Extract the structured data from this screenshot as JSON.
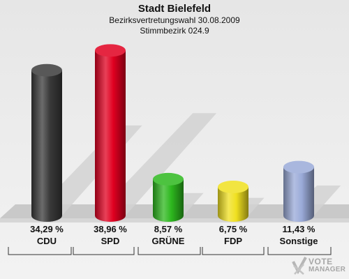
{
  "header": {
    "title": "Stadt Bielefeld",
    "subtitle": "Bezirksvertretungswahl 30.08.2009",
    "subtitle2": "Stimmbezirk 024.9"
  },
  "chart_data": {
    "type": "bar",
    "title": "Stadt Bielefeld",
    "categories": [
      "CDU",
      "SPD",
      "GRÜNE",
      "FDP",
      "Sonstige"
    ],
    "values": [
      34.29,
      38.96,
      8.57,
      6.75,
      11.43
    ],
    "value_labels": [
      "34,29 %",
      "38,96 %",
      "8,57 %",
      "6,75 %",
      "11,43 %"
    ],
    "colors": [
      "#3a3a3a",
      "#e00020",
      "#2db81e",
      "#f0e020",
      "#9aaad8"
    ],
    "ylim": [
      0,
      40
    ],
    "grid": false
  },
  "logo": {
    "line1": "VOTE",
    "line2": "MANAGER"
  }
}
